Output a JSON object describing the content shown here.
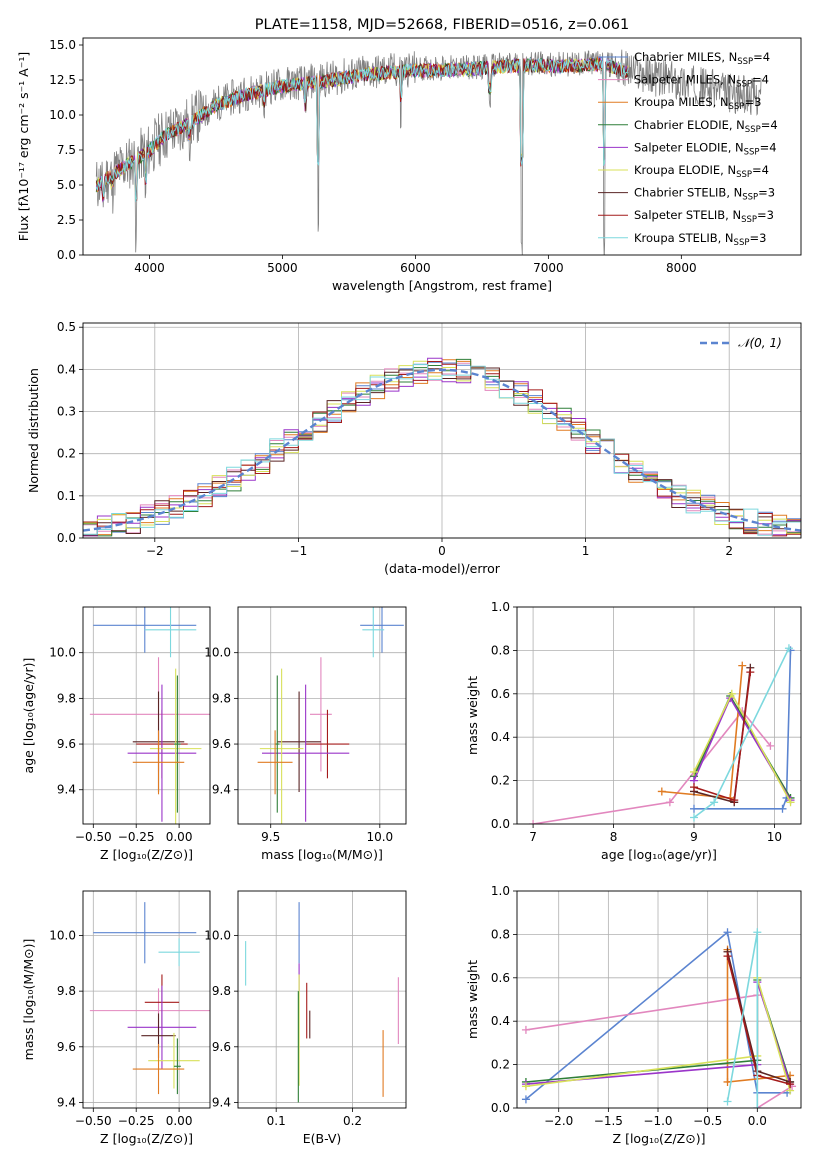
{
  "palette": {
    "Chabrier MILES": "#5B84D0",
    "Salpeter MILES": "#E287BE",
    "Kroupa MILES": "#E07B22",
    "Chabrier ELODIE": "#2F7F38",
    "Salpeter ELODIE": "#9A35C9",
    "Kroupa ELODIE": "#D8E05A",
    "Chabrier STELIB": "#5A2525",
    "Salpeter STELIB": "#A41B1B",
    "Kroupa STELIB": "#7DD8DE",
    "data": "#808080",
    "normal": "#5B84D0"
  },
  "chart_data": [
    {
      "id": "spectrum",
      "type": "line",
      "title": "PLATE=1158, MJD=52668, FIBERID=0516, z=0.061",
      "xlabel": "wavelength [Angstrom, rest frame]",
      "ylabel": "Flux [fλ10⁻¹⁷ erg cm⁻² s⁻¹ A⁻¹]",
      "xlim": [
        3500,
        8900
      ],
      "ylim": [
        0,
        15.5
      ],
      "xticks": [
        "4000",
        "5000",
        "6000",
        "7000",
        "8000"
      ],
      "yticks": [
        "0.0",
        "2.5",
        "5.0",
        "7.5",
        "10.0",
        "12.5",
        "15.0"
      ],
      "legend": [
        {
          "name": "Chabrier MILES, N",
          "sub": "SSP",
          "tail": "=4"
        },
        {
          "name": "Salpeter MILES, N",
          "sub": "SSP",
          "tail": "=4"
        },
        {
          "name": "Kroupa MILES, N",
          "sub": "SSP",
          "tail": "=3"
        },
        {
          "name": "Chabrier ELODIE, N",
          "sub": "SSP",
          "tail": "=4"
        },
        {
          "name": "Salpeter ELODIE, N",
          "sub": "SSP",
          "tail": "=4"
        },
        {
          "name": "Kroupa ELODIE, N",
          "sub": "SSP",
          "tail": "=4"
        },
        {
          "name": "Chabrier STELIB, N",
          "sub": "SSP",
          "tail": "=3"
        },
        {
          "name": "Salpeter STELIB, N",
          "sub": "SSP",
          "tail": "=3"
        },
        {
          "name": "Kroupa STELIB, N",
          "sub": "SSP",
          "tail": "=3"
        }
      ],
      "legend_location": "lower-right",
      "continuum": [
        [
          3600,
          5.0
        ],
        [
          3800,
          6.3
        ],
        [
          4000,
          7.5
        ],
        [
          4100,
          8.5
        ],
        [
          4300,
          9.5
        ],
        [
          4500,
          10.8
        ],
        [
          4700,
          11.5
        ],
        [
          5000,
          12.2
        ],
        [
          5300,
          12.5
        ],
        [
          5600,
          13.0
        ],
        [
          6000,
          13.3
        ],
        [
          6400,
          13.4
        ],
        [
          6800,
          13.7
        ],
        [
          7100,
          13.6
        ],
        [
          7400,
          13.8
        ],
        [
          7600,
          13.2
        ],
        [
          7900,
          12.5
        ],
        [
          8200,
          12.0
        ],
        [
          8400,
          11.5
        ],
        [
          8600,
          11.3
        ]
      ],
      "dips": [
        [
          3650,
          2.0
        ],
        [
          3720,
          1.0
        ],
        [
          3900,
          5.0
        ],
        [
          3970,
          3.5
        ],
        [
          4300,
          1.5
        ],
        [
          4860,
          1.5
        ],
        [
          5175,
          3.0
        ],
        [
          5270,
          11.0
        ],
        [
          5890,
          3.5
        ],
        [
          6560,
          3.0
        ],
        [
          6800,
          13.5
        ],
        [
          7420,
          13.5
        ]
      ]
    },
    {
      "id": "residuals",
      "type": "line",
      "xlabel": "(data-model)/error",
      "ylabel": "Normed distribution",
      "xlim": [
        -2.5,
        2.5
      ],
      "ylim": [
        0,
        0.51
      ],
      "xticks": [
        "−2",
        "−1",
        "0",
        "1",
        "2"
      ],
      "yticks": [
        "0.0",
        "0.1",
        "0.2",
        "0.3",
        "0.4",
        "0.5"
      ],
      "series": [
        {
          "name": "𝒩(0, 1)",
          "mean": 0,
          "sigma": 1
        }
      ],
      "bin_width": 0.1,
      "legend_location": "upper-right"
    },
    {
      "id": "age-vs-Z",
      "type": "scatter",
      "xlabel": "Z [log₁₀(Z/Z⊙)]",
      "ylabel": "age  [log₁₀(age/yr)]",
      "xlim": [
        -0.56,
        0.18
      ],
      "ylim": [
        9.25,
        10.2
      ],
      "xticks": [
        "−0.50",
        "−0.25",
        "0.00"
      ],
      "yticks": [
        "9.4",
        "9.6",
        "9.8",
        "10.0"
      ],
      "points": [
        {
          "model": "Chabrier MILES",
          "x": -0.2,
          "xerr": 0.3,
          "y": 10.12,
          "yerr": 0.12
        },
        {
          "model": "Kroupa STELIB",
          "x": -0.05,
          "xerr": 0.15,
          "y": 10.1,
          "yerr": 0.12
        },
        {
          "model": "Salpeter MILES",
          "x": -0.12,
          "xerr": 0.4,
          "y": 9.73,
          "yerr": 0.25
        },
        {
          "model": "Chabrier STELIB",
          "x": -0.12,
          "xerr": 0.15,
          "y": 9.61,
          "yerr": 0.22
        },
        {
          "model": "Salpeter STELIB",
          "x": -0.1,
          "xerr": 0.15,
          "y": 9.6,
          "yerr": 0.15
        },
        {
          "model": "Salpeter ELODIE",
          "x": -0.1,
          "xerr": 0.2,
          "y": 9.56,
          "yerr": 0.3
        },
        {
          "model": "Kroupa ELODIE",
          "x": -0.02,
          "xerr": 0.15,
          "y": 9.58,
          "yerr": 0.35
        },
        {
          "model": "Chabrier ELODIE",
          "x": -0.01,
          "xerr": 0.02,
          "y": 9.6,
          "yerr": 0.3
        },
        {
          "model": "Kroupa MILES",
          "x": -0.12,
          "xerr": 0.15,
          "y": 9.52,
          "yerr": 0.14
        }
      ]
    },
    {
      "id": "age-vs-mass",
      "type": "scatter",
      "xlabel": "mass [log₁₀(M/M⊙)]",
      "ylabel": "",
      "xlim": [
        9.35,
        10.12
      ],
      "ylim": [
        9.25,
        10.2
      ],
      "xticks": [
        "9.5",
        "10.0"
      ],
      "yticks": [
        "9.4",
        "9.6",
        "9.8",
        "10.0"
      ],
      "points": [
        {
          "model": "Chabrier MILES",
          "x": 10.01,
          "xerr": 0.1,
          "y": 10.12,
          "yerr": 0.12
        },
        {
          "model": "Kroupa STELIB",
          "x": 9.97,
          "xerr": 0.05,
          "y": 10.1,
          "yerr": 0.12
        },
        {
          "model": "Salpeter MILES",
          "x": 9.73,
          "xerr": 0.05,
          "y": 9.73,
          "yerr": 0.25
        },
        {
          "model": "Chabrier STELIB",
          "x": 9.63,
          "xerr": 0.1,
          "y": 9.61,
          "yerr": 0.22
        },
        {
          "model": "Salpeter STELIB",
          "x": 9.76,
          "xerr": 0.1,
          "y": 9.6,
          "yerr": 0.15
        },
        {
          "model": "Salpeter ELODIE",
          "x": 9.66,
          "xerr": 0.2,
          "y": 9.56,
          "yerr": 0.3
        },
        {
          "model": "Kroupa ELODIE",
          "x": 9.55,
          "xerr": 0.1,
          "y": 9.58,
          "yerr": 0.35
        },
        {
          "model": "Chabrier ELODIE",
          "x": 9.53,
          "xerr": 0.01,
          "y": 9.6,
          "yerr": 0.3
        },
        {
          "model": "Kroupa MILES",
          "x": 9.52,
          "xerr": 0.08,
          "y": 9.52,
          "yerr": 0.14
        }
      ]
    },
    {
      "id": "massweight-vs-age",
      "type": "line",
      "xlabel": "age  [log₁₀(age/yr)]",
      "ylabel": "mass weight",
      "xlim": [
        6.8,
        10.33
      ],
      "ylim": [
        0,
        1.0
      ],
      "xticks": [
        "7",
        "8",
        "9",
        "10"
      ],
      "yticks": [
        "0.0",
        "0.2",
        "0.4",
        "0.6",
        "0.8",
        "1.0"
      ],
      "series": [
        {
          "model": "Chabrier MILES",
          "x": [
            9.0,
            10.1,
            10.15,
            10.2
          ],
          "y": [
            0.07,
            0.07,
            0.12,
            0.8
          ]
        },
        {
          "model": "Salpeter MILES",
          "x": [
            7.0,
            8.7,
            9.6,
            9.95
          ],
          "y": [
            0.0,
            0.1,
            0.52,
            0.36
          ]
        },
        {
          "model": "Kroupa MILES",
          "x": [
            8.6,
            9.45,
            9.6
          ],
          "y": [
            0.15,
            0.12,
            0.73
          ]
        },
        {
          "model": "Chabrier ELODIE",
          "x": [
            9.0,
            9.45,
            10.2
          ],
          "y": [
            0.22,
            0.59,
            0.12
          ]
        },
        {
          "model": "Salpeter ELODIE",
          "x": [
            9.0,
            9.45,
            10.2
          ],
          "y": [
            0.2,
            0.58,
            0.11
          ]
        },
        {
          "model": "Kroupa ELODIE",
          "x": [
            9.0,
            9.47,
            10.2
          ],
          "y": [
            0.24,
            0.6,
            0.1
          ]
        },
        {
          "model": "Chabrier STELIB",
          "x": [
            9.0,
            9.5,
            9.7
          ],
          "y": [
            0.15,
            0.1,
            0.72
          ]
        },
        {
          "model": "Salpeter STELIB",
          "x": [
            9.0,
            9.5,
            9.7
          ],
          "y": [
            0.17,
            0.11,
            0.7
          ]
        },
        {
          "model": "Kroupa STELIB",
          "x": [
            9.0,
            9.25,
            10.18
          ],
          "y": [
            0.03,
            0.1,
            0.81
          ]
        }
      ]
    },
    {
      "id": "mass-vs-Z",
      "type": "scatter",
      "xlabel": "Z [log₁₀(Z/Z⊙)]",
      "ylabel": "mass [log₁₀(M/M⊙)]",
      "xlim": [
        -0.56,
        0.18
      ],
      "ylim": [
        9.38,
        10.16
      ],
      "xticks": [
        "−0.50",
        "−0.25",
        "0.00"
      ],
      "yticks": [
        "9.4",
        "9.6",
        "9.8",
        "10.0"
      ],
      "points": [
        {
          "model": "Chabrier MILES",
          "x": -0.2,
          "xerr": 0.3,
          "y": 10.01,
          "yerr": 0.11
        },
        {
          "model": "Kroupa STELIB",
          "x": 0.0,
          "xerr": 0.12,
          "y": 9.94,
          "yerr": 0.05
        },
        {
          "model": "Salpeter MILES",
          "x": -0.12,
          "xerr": 0.4,
          "y": 9.73,
          "yerr": 0.08
        },
        {
          "model": "Salpeter STELIB",
          "x": -0.1,
          "xerr": 0.1,
          "y": 9.76,
          "yerr": 0.1
        },
        {
          "model": "Salpeter ELODIE",
          "x": -0.1,
          "xerr": 0.2,
          "y": 9.67,
          "yerr": 0.15
        },
        {
          "model": "Chabrier STELIB",
          "x": -0.12,
          "xerr": 0.1,
          "y": 9.64,
          "yerr": 0.08
        },
        {
          "model": "Kroupa ELODIE",
          "x": -0.03,
          "xerr": 0.15,
          "y": 9.55,
          "yerr": 0.1
        },
        {
          "model": "Chabrier ELODIE",
          "x": -0.01,
          "xerr": 0.02,
          "y": 9.53,
          "yerr": 0.1
        },
        {
          "model": "Kroupa MILES",
          "x": -0.12,
          "xerr": 0.15,
          "y": 9.52,
          "yerr": 0.09
        }
      ]
    },
    {
      "id": "mass-vs-EBV",
      "type": "scatter",
      "xlabel": "E(B-V)",
      "ylabel": "",
      "xlim": [
        0.05,
        0.27
      ],
      "ylim": [
        9.38,
        10.16
      ],
      "xticks": [
        "0.1",
        "0.2"
      ],
      "yticks": [
        "9.4",
        "9.6",
        "9.8",
        "10.0"
      ],
      "points": [
        {
          "model": "Kroupa STELIB",
          "x": 0.06,
          "y": 9.9,
          "yerr": 0.08
        },
        {
          "model": "Chabrier MILES",
          "x": 0.13,
          "y": 10.01,
          "yerr": 0.11
        },
        {
          "model": "Salpeter ELODIE",
          "x": 0.13,
          "y": 9.85,
          "yerr": 0.05
        },
        {
          "model": "Kroupa ELODIE",
          "x": 0.13,
          "y": 9.66,
          "yerr": 0.2
        },
        {
          "model": "Chabrier ELODIE",
          "x": 0.129,
          "y": 9.6,
          "yerr": 0.2
        },
        {
          "model": "Salpeter STELIB",
          "x": 0.14,
          "y": 9.73,
          "yerr": 0.1
        },
        {
          "model": "Chabrier STELIB",
          "x": 0.144,
          "y": 9.68,
          "yerr": 0.05
        },
        {
          "model": "Kroupa MILES",
          "x": 0.24,
          "y": 9.54,
          "yerr": 0.12
        },
        {
          "model": "Salpeter MILES",
          "x": 0.26,
          "y": 9.73,
          "yerr": 0.12
        }
      ]
    },
    {
      "id": "massweight-vs-Z",
      "type": "line",
      "xlabel": "Z [log₁₀(Z/Z⊙)]",
      "ylabel": "mass weight",
      "xlim": [
        -2.42,
        0.44
      ],
      "ylim": [
        0,
        1.0
      ],
      "xticks": [
        "−2.0",
        "−1.5",
        "−1.0",
        "−0.5",
        "0.0"
      ],
      "yticks": [
        "0.0",
        "0.2",
        "0.4",
        "0.6",
        "0.8",
        "1.0"
      ],
      "series": [
        {
          "model": "Chabrier MILES",
          "x": [
            -2.33,
            -0.3,
            0.0,
            0.3
          ],
          "y": [
            0.04,
            0.81,
            0.07,
            0.07
          ]
        },
        {
          "model": "Salpeter MILES",
          "x": [
            -2.33,
            0.0,
            0.0,
            0.35
          ],
          "y": [
            0.36,
            0.52,
            0.0,
            0.1
          ]
        },
        {
          "model": "Kroupa MILES",
          "x": [
            -0.3,
            -0.3,
            0.33
          ],
          "y": [
            0.73,
            0.12,
            0.15
          ]
        },
        {
          "model": "Chabrier ELODIE",
          "x": [
            -2.33,
            0.0,
            0.0,
            0.33
          ],
          "y": [
            0.12,
            0.22,
            0.59,
            0.12
          ]
        },
        {
          "model": "Salpeter ELODIE",
          "x": [
            -2.33,
            0.0,
            0.0,
            0.33
          ],
          "y": [
            0.11,
            0.2,
            0.58,
            0.11
          ]
        },
        {
          "model": "Kroupa ELODIE",
          "x": [
            -2.33,
            0.0,
            0.0,
            0.33
          ],
          "y": [
            0.1,
            0.24,
            0.6,
            0.08
          ]
        },
        {
          "model": "Chabrier STELIB",
          "x": [
            -0.3,
            0.0,
            0.33
          ],
          "y": [
            0.72,
            0.17,
            0.12
          ]
        },
        {
          "model": "Salpeter STELIB",
          "x": [
            -0.3,
            0.0,
            0.33
          ],
          "y": [
            0.7,
            0.15,
            0.11
          ]
        },
        {
          "model": "Kroupa STELIB",
          "x": [
            -0.3,
            0.0,
            0.0
          ],
          "y": [
            0.03,
            0.81,
            0.0
          ]
        }
      ]
    }
  ]
}
